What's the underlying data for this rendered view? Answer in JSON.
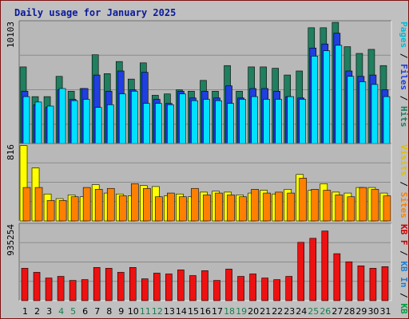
{
  "chart_data": {
    "type": "bar",
    "title": "Daily usage for January 2025",
    "categories": [
      "1",
      "2",
      "3",
      "4",
      "5",
      "6",
      "7",
      "8",
      "9",
      "10",
      "11",
      "12",
      "13",
      "14",
      "15",
      "16",
      "17",
      "18",
      "19",
      "20",
      "21",
      "22",
      "23",
      "24",
      "25",
      "26",
      "27",
      "28",
      "29",
      "30",
      "31"
    ],
    "weekend_days": [
      "4",
      "5",
      "11",
      "12",
      "18",
      "19",
      "25",
      "26"
    ],
    "grid": true,
    "panels": [
      {
        "max_label": "10103",
        "ymax": 10103,
        "legend_label": "Pages / Files / Hits",
        "series": [
          {
            "name": "Hits",
            "color": "#1f7f5f",
            "values": [
              6800,
              4600,
              4600,
              6100,
              5000,
              5200,
              7700,
              6300,
              7200,
              5900,
              7100,
              4700,
              4800,
              5100,
              5000,
              5800,
              5000,
              6900,
              5000,
              6800,
              6800,
              6700,
              6200,
              6500,
              9700,
              9700,
              10100,
              8300,
              7800,
              8100,
              6900
            ]
          },
          {
            "name": "Files",
            "color": "#1f3fe0",
            "values": [
              5000,
              4000,
              3800,
              5100,
              4400,
              5200,
              6200,
              5000,
              6500,
              5100,
              6400,
              4400,
              4100,
              5000,
              4500,
              5000,
              4500,
              5400,
              4500,
              5200,
              5200,
              5000,
              4600,
              4500,
              8200,
              8500,
              9300,
              6500,
              6100,
              6200,
              5100
            ]
          },
          {
            "name": "Pages",
            "color": "#00e0ff",
            "values": [
              4600,
              4200,
              3900,
              5200,
              4300,
              4400,
              3800,
              4000,
              4800,
              5000,
              4100,
              4100,
              4000,
              4800,
              4300,
              4400,
              4300,
              4100,
              4400,
              4600,
              4400,
              4400,
              4600,
              4400,
              7600,
              8000,
              8400,
              6100,
              5700,
              5500,
              4600
            ]
          }
        ]
      },
      {
        "max_label": "816",
        "ymax": 816,
        "legend_label": "Visits / Sites",
        "series": [
          {
            "name": "Visits",
            "color": "#ffff00",
            "values": [
              810,
              570,
              290,
              240,
              280,
              260,
              390,
              300,
              290,
              270,
              380,
              370,
              270,
              290,
              260,
              310,
              320,
              310,
              280,
              300,
              330,
              290,
              340,
              500,
              330,
              400,
              310,
              300,
              360,
              360,
              300
            ]
          },
          {
            "name": "Sites",
            "color": "#ff8000",
            "values": [
              360,
              360,
              220,
              220,
              260,
              360,
              340,
              350,
              270,
              400,
              350,
              260,
              300,
              260,
              350,
              280,
              300,
              280,
              260,
              340,
              300,
              310,
              300,
              460,
              340,
              330,
              280,
              260,
              360,
              340,
              270
            ]
          }
        ]
      },
      {
        "max_label": "935254",
        "ymax": 935254,
        "legend_label": "KB F / KB In / KB Out",
        "legend_parts": [
          {
            "text": "KB F",
            "color": "#cc0000"
          },
          {
            "text": " / ",
            "color": "#000000"
          },
          {
            "text": "KB In",
            "color": "#1f7fd0"
          },
          {
            "text": " / ",
            "color": "#000000"
          },
          {
            "text": "KB Out",
            "color": "#00a040"
          }
        ],
        "series": [
          {
            "name": "KB F",
            "color": "#ee1111",
            "values": [
              400000,
              350000,
              280000,
              300000,
              250000,
              260000,
              410000,
              400000,
              350000,
              410000,
              270000,
              340000,
              330000,
              380000,
              310000,
              370000,
              250000,
              390000,
              300000,
              330000,
              280000,
              260000,
              300000,
              720000,
              770000,
              860000,
              580000,
              480000,
              430000,
              400000,
              420000
            ]
          }
        ]
      }
    ]
  }
}
